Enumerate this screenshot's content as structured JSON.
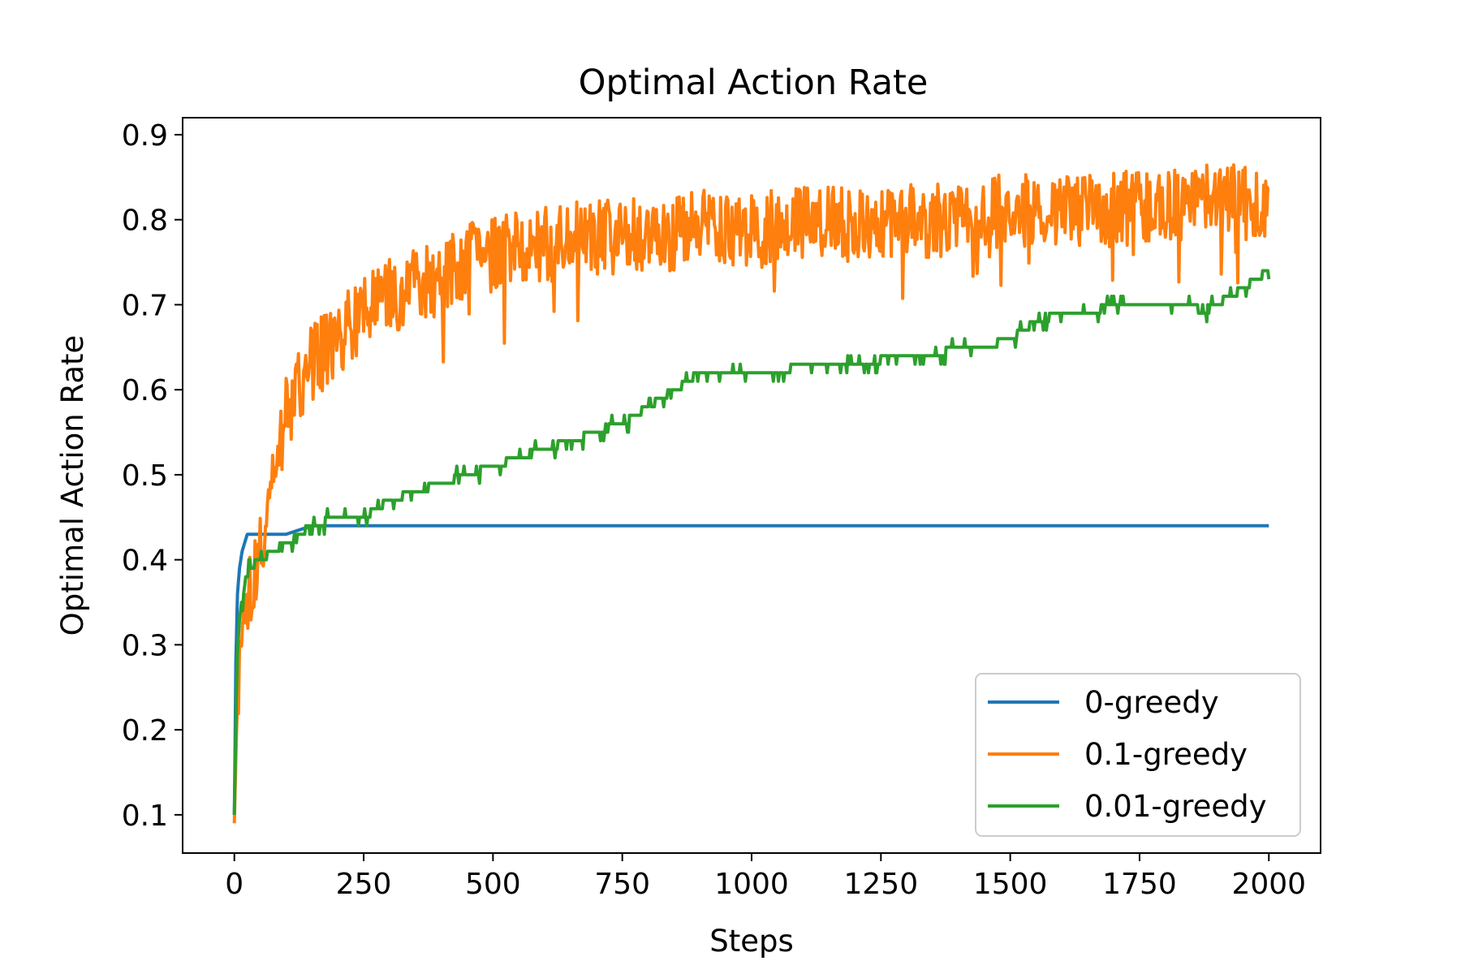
{
  "chart_data": {
    "type": "line",
    "title": "Optimal Action Rate",
    "xlabel": "Steps",
    "ylabel": "Optimal Action Rate",
    "xlim": [
      -100,
      2100
    ],
    "ylim": [
      0.055,
      0.92
    ],
    "xticks": [
      0,
      250,
      500,
      750,
      1000,
      1250,
      1500,
      1750,
      2000
    ],
    "xtick_labels": [
      "0",
      "250",
      "500",
      "750",
      "1000",
      "1250",
      "1500",
      "1750",
      "2000"
    ],
    "yticks": [
      0.1,
      0.2,
      0.3,
      0.4,
      0.5,
      0.6,
      0.7,
      0.8,
      0.9
    ],
    "ytick_labels": [
      "0.1",
      "0.2",
      "0.3",
      "0.4",
      "0.5",
      "0.6",
      "0.7",
      "0.8",
      "0.9"
    ],
    "grid": false,
    "legend_position": "lower-right",
    "series": [
      {
        "name": "0-greedy",
        "color": "#1f77b4",
        "x": [
          0,
          3,
          6,
          10,
          15,
          20,
          25,
          30,
          50,
          100,
          150,
          200,
          260,
          300,
          500,
          1000,
          1500,
          2000
        ],
        "y": [
          0.1,
          0.28,
          0.36,
          0.39,
          0.41,
          0.42,
          0.43,
          0.43,
          0.43,
          0.43,
          0.44,
          0.44,
          0.44,
          0.44,
          0.44,
          0.44,
          0.44,
          0.44
        ]
      },
      {
        "name": "0.1-greedy",
        "color": "#ff7f0e",
        "x": [
          0,
          5,
          10,
          20,
          30,
          50,
          75,
          100,
          125,
          150,
          200,
          250,
          300,
          350,
          400,
          450,
          500,
          600,
          700,
          800,
          900,
          1000,
          1100,
          1200,
          1300,
          1400,
          1500,
          1600,
          1700,
          1800,
          1900,
          2000
        ],
        "y": [
          0.09,
          0.22,
          0.28,
          0.32,
          0.36,
          0.42,
          0.5,
          0.57,
          0.61,
          0.63,
          0.66,
          0.69,
          0.71,
          0.72,
          0.73,
          0.75,
          0.76,
          0.77,
          0.78,
          0.78,
          0.79,
          0.79,
          0.8,
          0.8,
          0.8,
          0.8,
          0.81,
          0.81,
          0.81,
          0.82,
          0.82,
          0.82
        ]
      },
      {
        "name": "0.01-greedy",
        "color": "#2ca02c",
        "x": [
          0,
          5,
          10,
          20,
          30,
          50,
          75,
          100,
          125,
          150,
          200,
          250,
          275,
          300,
          350,
          400,
          450,
          500,
          550,
          600,
          650,
          700,
          750,
          800,
          850,
          900,
          1000,
          1050,
          1100,
          1200,
          1300,
          1350,
          1400,
          1450,
          1500,
          1550,
          1600,
          1650,
          1700,
          1750,
          1800,
          1850,
          1875,
          1900,
          1925,
          1950,
          1975,
          2000
        ],
        "y": [
          0.1,
          0.28,
          0.33,
          0.37,
          0.39,
          0.4,
          0.41,
          0.42,
          0.43,
          0.44,
          0.45,
          0.45,
          0.46,
          0.47,
          0.48,
          0.49,
          0.5,
          0.51,
          0.52,
          0.53,
          0.54,
          0.55,
          0.56,
          0.58,
          0.6,
          0.62,
          0.62,
          0.62,
          0.63,
          0.63,
          0.64,
          0.64,
          0.65,
          0.65,
          0.66,
          0.68,
          0.69,
          0.69,
          0.7,
          0.7,
          0.7,
          0.7,
          0.69,
          0.7,
          0.71,
          0.72,
          0.73,
          0.74
        ]
      }
    ]
  }
}
